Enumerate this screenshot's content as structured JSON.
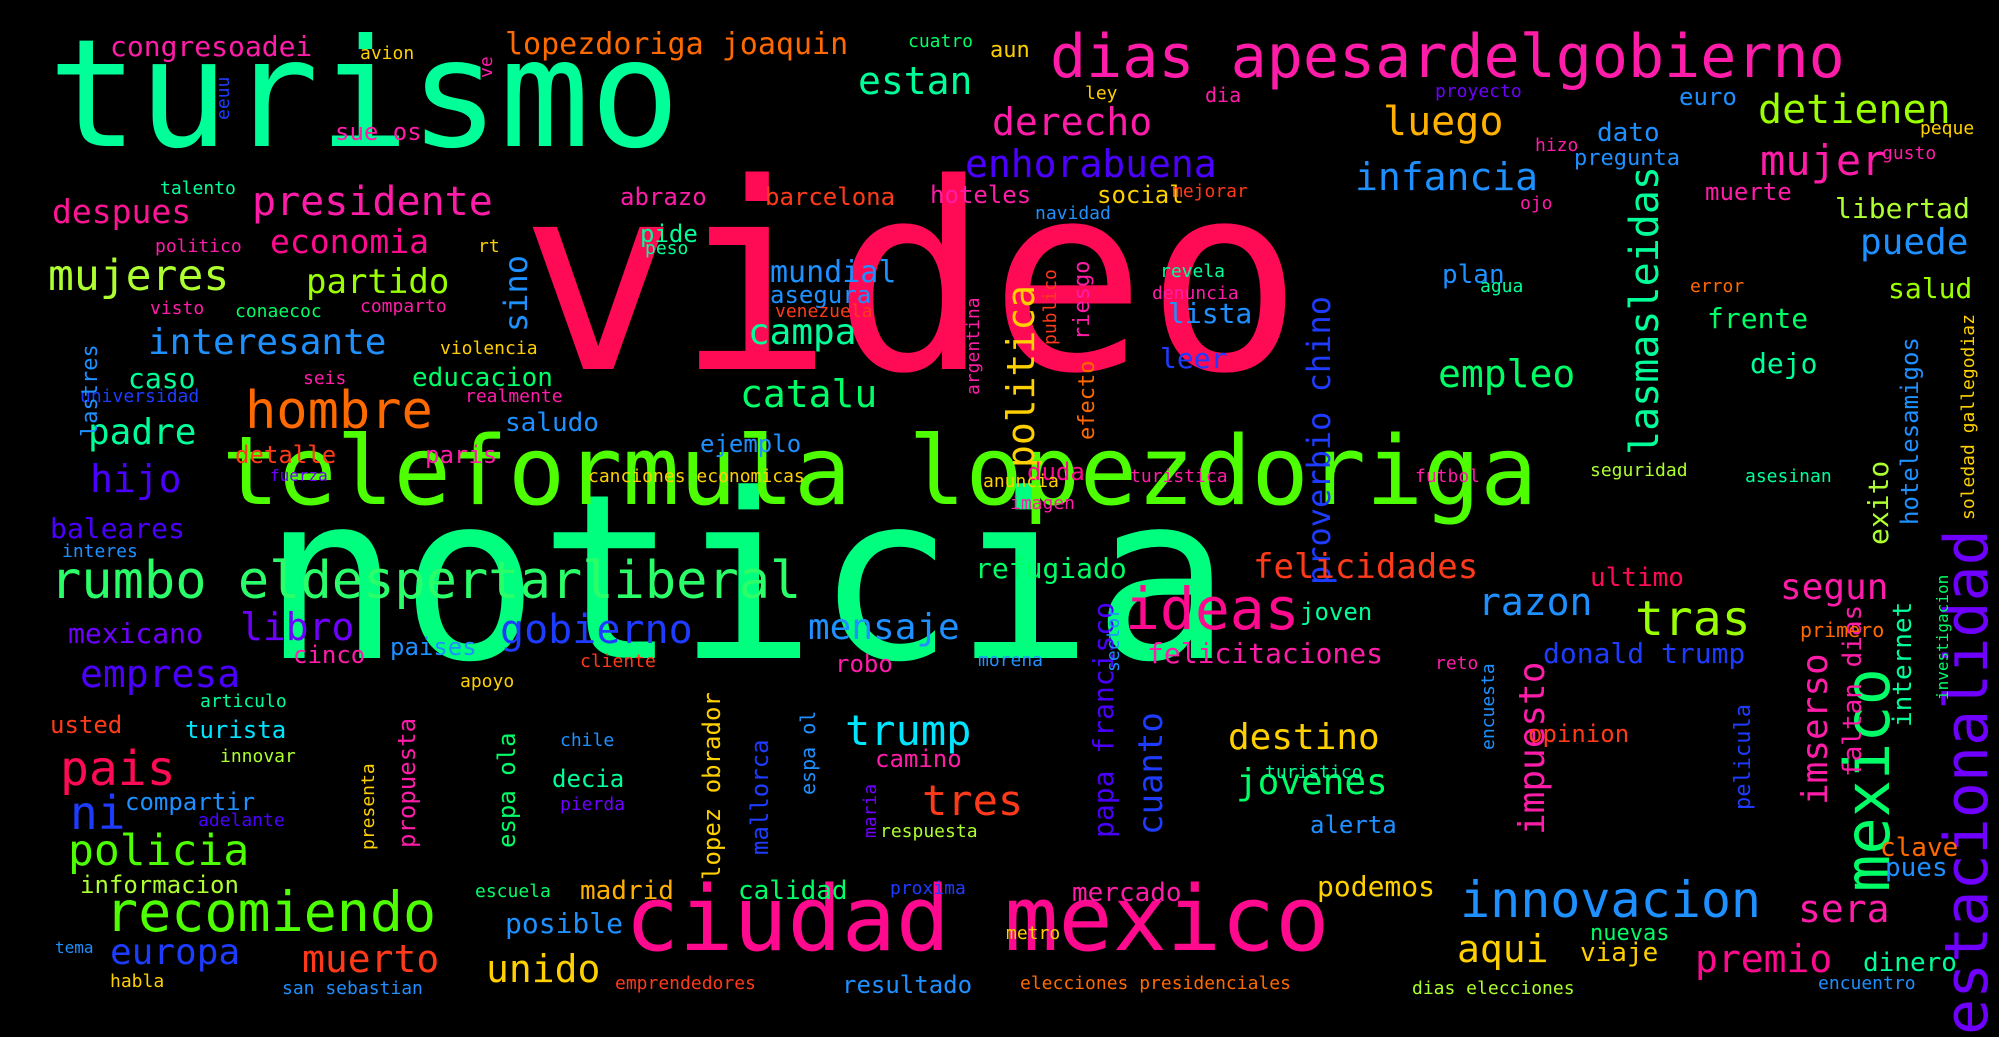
{
  "words": [
    "video",
    "noticia",
    "turismo",
    "teleformula lopezdoriga",
    "ciudad mexico",
    "dias apesardelgobierno",
    "rumbo eldespertarliberal",
    "hombre",
    "recomiendo",
    "ideas",
    "innovacion",
    "mujeres",
    "presidente",
    "interesante",
    "economia",
    "partido",
    "despues",
    "padre",
    "hijo",
    "pais",
    "ni",
    "policia",
    "empresa",
    "libro",
    "europa",
    "muerto",
    "unido",
    "aqui",
    "catalu",
    "campa",
    "empleo",
    "infancia",
    "luego",
    "mujer",
    "detienen",
    "puede",
    "mexico",
    "estacionalidad",
    "lasmasleidas",
    "proverbio chino",
    "politica",
    "sino",
    "enhorabuena",
    "derecho",
    "estan",
    "lopezdoriga joaquin",
    "congresoadei",
    "felicidades",
    "tras",
    "razon",
    "segun",
    "gobierno",
    "mensaje",
    "destino",
    "jovenes",
    "trump",
    "tres",
    "cuanto",
    "impuesto",
    "imserso",
    "premio",
    "sera",
    "mundial",
    "asegura",
    "plan",
    "lista",
    "leer",
    "frente",
    "dejo",
    "salud",
    "libertad",
    "muerte",
    "dato",
    "pregunta",
    "euro",
    "baleares",
    "mexicano",
    "caso",
    "educacion",
    "saludo",
    "detalle",
    "paris",
    "ejemplo",
    "duda",
    "refugiado",
    "felicitaciones",
    "donald trump",
    "joven",
    "ultimo",
    "exito",
    "internet",
    "clave",
    "pues",
    "dinero",
    "viaje",
    "nuevas",
    "podemos",
    "calidad",
    "madrid",
    "posible",
    "mercado",
    "resultado",
    "abrazo",
    "barcelona",
    "hoteles",
    "social",
    "pide",
    "compartir",
    "informacion",
    "usted",
    "turista",
    "cinco",
    "paises",
    "robo",
    "decia",
    "camino",
    "alerta",
    "opinion",
    "papa francisco",
    "faltan dias",
    "lopez obrador",
    "mallorca",
    "espa ola",
    "propuesta",
    "presenta",
    "hotelesamigos",
    "soledad gallegodiaz",
    "investigacion",
    "pelicula",
    "encuesta",
    "primero",
    "reto",
    "morena",
    "sector",
    "cliente",
    "apoyo",
    "articulo",
    "innovar",
    "adelante",
    "pierda",
    "chile",
    "maria",
    "respuesta",
    "espa ol",
    "turistico",
    "proxima",
    "escuela",
    "habla",
    "tema",
    "san sebastian",
    "emprendedores",
    "elecciones presidenciales",
    "dias elecciones",
    "encuentro",
    "metro",
    "canciones economicas",
    "fuerza",
    "universidad",
    "realmente",
    "lastres",
    "violencia",
    "comparto",
    "visto",
    "conaecoc",
    "seis",
    "politico",
    "peso",
    "talento",
    "rt",
    "venezuela",
    "revela",
    "denuncia",
    "agua",
    "error",
    "navidad",
    "ojo",
    "mejorar",
    "hizo",
    "gusto",
    "peque",
    "proyecto",
    "ley",
    "dia",
    "cuatro",
    "avion",
    "aun",
    "ve",
    "eeuu",
    "sue os",
    "riesgo",
    "efecto",
    "publico",
    "argentina",
    "anuncia",
    "imagen",
    "turistica",
    "futbol",
    "seguridad",
    "asesinan",
    "interes"
  ]
}
